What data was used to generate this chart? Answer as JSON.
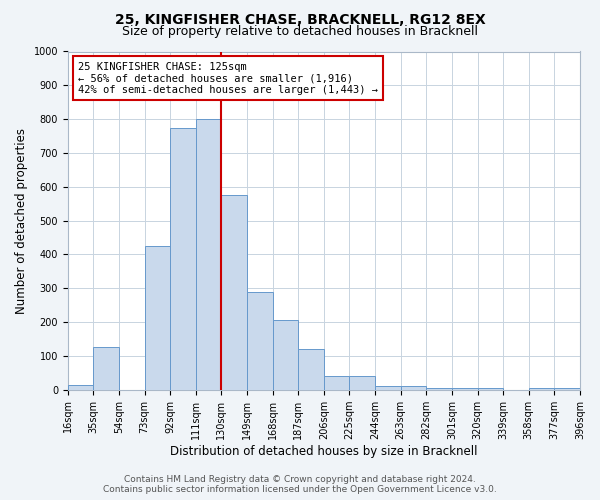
{
  "title": "25, KINGFISHER CHASE, BRACKNELL, RG12 8EX",
  "subtitle": "Size of property relative to detached houses in Bracknell",
  "xlabel": "Distribution of detached houses by size in Bracknell",
  "ylabel": "Number of detached properties",
  "bin_labels": [
    "16sqm",
    "35sqm",
    "54sqm",
    "73sqm",
    "92sqm",
    "111sqm",
    "130sqm",
    "149sqm",
    "168sqm",
    "187sqm",
    "206sqm",
    "225sqm",
    "244sqm",
    "263sqm",
    "282sqm",
    "301sqm",
    "320sqm",
    "339sqm",
    "358sqm",
    "377sqm",
    "396sqm"
  ],
  "bin_left_edges": [
    16,
    35,
    54,
    73,
    92,
    111,
    130,
    149,
    168,
    187,
    206,
    225,
    244,
    263,
    282,
    301,
    320,
    339,
    358,
    377
  ],
  "bar_heights": [
    15,
    125,
    0,
    425,
    775,
    800,
    575,
    290,
    207,
    120,
    40,
    40,
    12,
    10,
    5,
    5,
    5,
    0,
    5,
    5
  ],
  "bar_color": "#c9d9ec",
  "bar_edgecolor": "#6699cc",
  "vline_x": 130,
  "vline_color": "#cc0000",
  "ylim": [
    0,
    1000
  ],
  "yticks": [
    0,
    100,
    200,
    300,
    400,
    500,
    600,
    700,
    800,
    900,
    1000
  ],
  "xtick_positions": [
    16,
    35,
    54,
    73,
    92,
    111,
    130,
    149,
    168,
    187,
    206,
    225,
    244,
    263,
    282,
    301,
    320,
    339,
    358,
    377,
    396
  ],
  "annotation_title": "25 KINGFISHER CHASE: 125sqm",
  "annotation_line1": "← 56% of detached houses are smaller (1,916)",
  "annotation_line2": "42% of semi-detached houses are larger (1,443) →",
  "annotation_box_facecolor": "#ffffff",
  "annotation_box_edgecolor": "#cc0000",
  "footer_line1": "Contains HM Land Registry data © Crown copyright and database right 2024.",
  "footer_line2": "Contains public sector information licensed under the Open Government Licence v3.0.",
  "fig_facecolor": "#f0f4f8",
  "plot_facecolor": "#ffffff",
  "grid_color": "#c8d4e0",
  "title_fontsize": 10,
  "subtitle_fontsize": 9,
  "axis_label_fontsize": 8.5,
  "tick_fontsize": 7,
  "annotation_fontsize": 7.5,
  "footer_fontsize": 6.5
}
